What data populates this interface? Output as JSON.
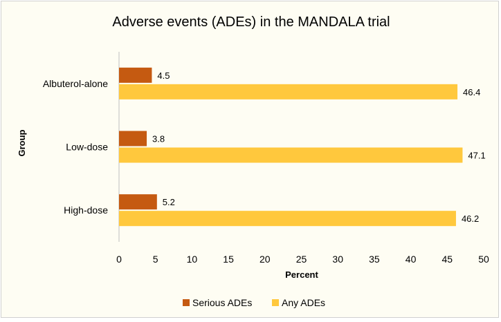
{
  "chart_data": {
    "type": "bar",
    "orientation": "horizontal",
    "title": "Adverse events (ADEs) in the MANDALA trial",
    "xlabel": "Percent",
    "ylabel": "Group",
    "categories": [
      "Albuterol-alone",
      "Low-dose",
      "High-dose"
    ],
    "series": [
      {
        "name": "Serious ADEs",
        "color": "#c55a11",
        "values": [
          4.5,
          3.8,
          5.2
        ]
      },
      {
        "name": "Any ADEs",
        "color": "#ffc83d",
        "values": [
          46.4,
          47.1,
          46.2
        ]
      }
    ],
    "xlim": [
      0,
      50
    ],
    "xticks": [
      0,
      5,
      10,
      15,
      20,
      25,
      30,
      35,
      40,
      45,
      50
    ],
    "grid": false,
    "data_labels": true,
    "legend_position": "bottom"
  }
}
